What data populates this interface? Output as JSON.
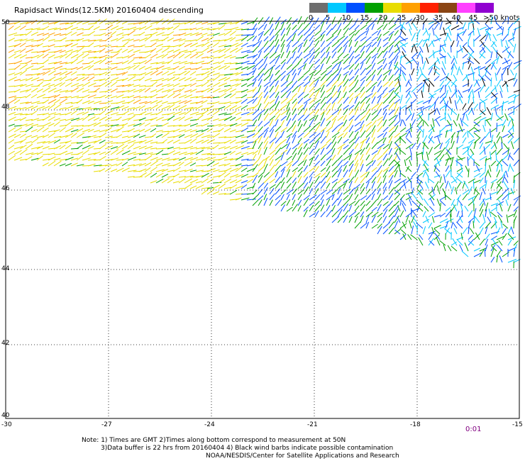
{
  "title": "Rapidsact Winds(12.5KM) 20160404 descending",
  "colorbar": {
    "labels": [
      "0",
      "5",
      "10",
      "15",
      "20",
      "25",
      "30",
      "35",
      "40",
      "45",
      ">50 knots"
    ],
    "colors": [
      "#6e6e6e",
      "#00c8ff",
      "#0050ff",
      "#00a000",
      "#e8dc00",
      "#ffa000",
      "#ff2000",
      "#8b4513",
      "#ff40ff",
      "#9000d0"
    ]
  },
  "axes": {
    "lat_labels": [
      "50",
      "48",
      "46",
      "44",
      "42",
      "40"
    ],
    "lon_labels": [
      "-30",
      "-27",
      "-24",
      "-21",
      "-18",
      "-15"
    ]
  },
  "time_code": "0:01",
  "notes": [
    "Note: 1) Times are GMT 2)Times along bottom correspond to measurement at 50N",
    "3)Data buffer is 22 hrs from 20160404 4) Black wind barbs indicate possible contamination",
    "NOAA/NESDIS/Center for Satellite Applications and Research"
  ]
}
